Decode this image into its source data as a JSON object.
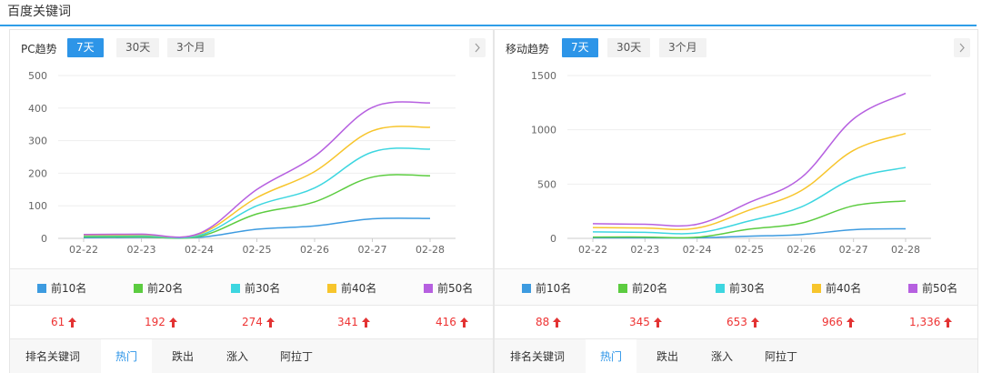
{
  "page": {
    "title": "百度关键词"
  },
  "panels": [
    {
      "id": "pc",
      "label": "PC趋势",
      "range_tabs": [
        "7天",
        "30天",
        "3个月"
      ],
      "active_range": "7天",
      "legend": [
        "前10名",
        "前20名",
        "前30名",
        "前40名",
        "前50名"
      ],
      "values": [
        "61",
        "192",
        "274",
        "341",
        "416"
      ],
      "keyword_tabs": [
        "排名关键词",
        "热门",
        "跌出",
        "涨入",
        "阿拉丁"
      ],
      "active_keyword_tab": "热门"
    },
    {
      "id": "mobile",
      "label": "移动趋势",
      "range_tabs": [
        "7天",
        "30天",
        "3个月"
      ],
      "active_range": "7天",
      "legend": [
        "前10名",
        "前20名",
        "前30名",
        "前40名",
        "前50名"
      ],
      "values": [
        "88",
        "345",
        "653",
        "966",
        "1,336"
      ],
      "keyword_tabs": [
        "排名关键词",
        "热门",
        "跌出",
        "涨入",
        "阿拉丁"
      ],
      "active_keyword_tab": "热门"
    }
  ],
  "colors": {
    "accent": "#2d95e8",
    "up_arrow": "#e33333",
    "series": [
      "#3d9be0",
      "#5ccc40",
      "#3dd6e0",
      "#f7c52c",
      "#b660e0"
    ]
  },
  "icons": {
    "next": "chevron-right-icon",
    "trend_up": "arrow-up-icon"
  },
  "chart_data": [
    {
      "type": "line",
      "title": "",
      "x": [
        "02-22",
        "02-23",
        "02-24",
        "02-25",
        "02-26",
        "02-27",
        "02-28"
      ],
      "ylim": [
        0,
        500
      ],
      "yticks": [
        0,
        100,
        200,
        300,
        400,
        500
      ],
      "grid": true,
      "legend": "bottom",
      "series": [
        {
          "name": "前10名",
          "values": [
            2,
            3,
            3,
            28,
            38,
            60,
            61
          ]
        },
        {
          "name": "前20名",
          "values": [
            5,
            5,
            6,
            75,
            112,
            188,
            192
          ]
        },
        {
          "name": "前30名",
          "values": [
            8,
            8,
            9,
            100,
            155,
            265,
            274
          ]
        },
        {
          "name": "前40名",
          "values": [
            10,
            11,
            13,
            125,
            205,
            330,
            341
          ]
        },
        {
          "name": "前50名",
          "values": [
            12,
            13,
            15,
            150,
            252,
            402,
            416
          ]
        }
      ]
    },
    {
      "type": "line",
      "title": "",
      "x": [
        "02-22",
        "02-23",
        "02-24",
        "02-25",
        "02-26",
        "02-27",
        "02-28"
      ],
      "ylim": [
        0,
        1500
      ],
      "yticks": [
        0,
        500,
        1000,
        1500
      ],
      "grid": true,
      "legend": "bottom",
      "series": [
        {
          "name": "前10名",
          "values": [
            5,
            5,
            5,
            20,
            35,
            80,
            88
          ]
        },
        {
          "name": "前20名",
          "values": [
            12,
            12,
            10,
            85,
            140,
            300,
            345
          ]
        },
        {
          "name": "前30名",
          "values": [
            60,
            55,
            50,
            160,
            290,
            550,
            653
          ]
        },
        {
          "name": "前40名",
          "values": [
            100,
            95,
            95,
            260,
            440,
            810,
            966
          ]
        },
        {
          "name": "前50名",
          "values": [
            135,
            130,
            130,
            330,
            560,
            1100,
            1336
          ]
        }
      ]
    }
  ]
}
